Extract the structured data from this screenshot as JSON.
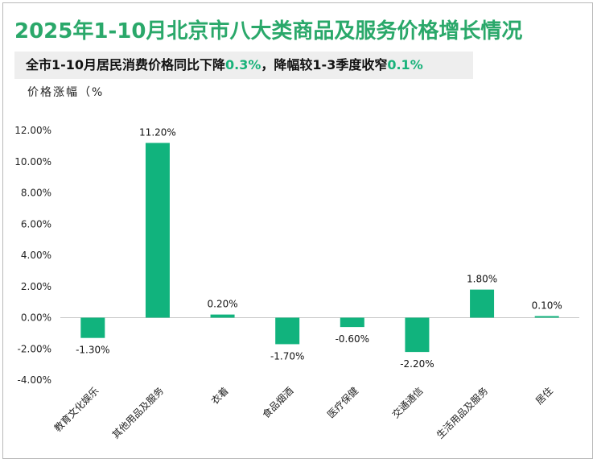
{
  "title": "2025年1-10月北京市八大类商品及服务价格增长情况",
  "subtitle": {
    "part1": "全市1-10月居民消费价格同比下降",
    "hl1": "0.3%",
    "part2": "，降幅较1-3季度收窄",
    "hl2": "0.1%"
  },
  "colors": {
    "bar": "#11b37d",
    "title": "#2aa86a",
    "accent": "#18b27a"
  },
  "chart_data": {
    "type": "bar",
    "ylabel": "价格涨幅（%",
    "ylim": [
      -4,
      12
    ],
    "yticks": [
      12,
      10,
      8,
      6,
      4,
      2,
      0,
      -2,
      -4
    ],
    "ytick_labels": [
      "12.00%",
      "10.00%",
      "8.00%",
      "6.00%",
      "4.00%",
      "2.00%",
      "0.00%",
      "-2.00%",
      "-4.00%"
    ],
    "categories": [
      "教育文化娱乐",
      "其他用品及服务",
      "衣着",
      "食品烟酒",
      "医疗保健",
      "交通通信",
      "生活用品及服务",
      "居住"
    ],
    "values": [
      -1.3,
      11.2,
      0.2,
      -1.7,
      -0.6,
      -2.2,
      1.8,
      0.1
    ],
    "data_labels": [
      "-1.30%",
      "11.20%",
      "0.20%",
      "-1.70%",
      "-0.60%",
      "-2.20%",
      "1.80%",
      "0.10%"
    ],
    "legend": "none",
    "grid": false
  }
}
